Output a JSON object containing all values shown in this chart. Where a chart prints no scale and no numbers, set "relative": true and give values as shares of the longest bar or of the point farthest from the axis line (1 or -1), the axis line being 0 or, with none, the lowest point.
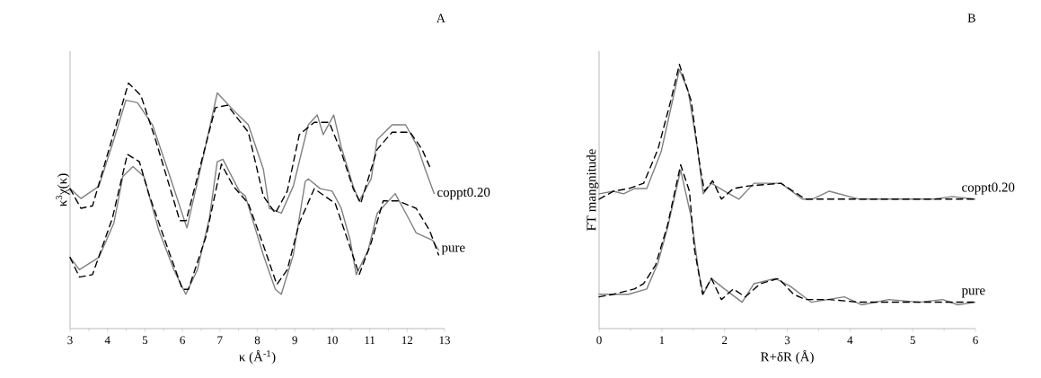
{
  "chart_data": [
    {
      "type": "line",
      "title": "A",
      "xlabel": "κ (Å$^{-1}$)",
      "ylabel": "κ$^{3}$χ(κ)",
      "relative": true,
      "xlim": [
        3,
        13
      ],
      "xticks": [
        3,
        4,
        5,
        6,
        7,
        8,
        9,
        10,
        11,
        12,
        13
      ],
      "series": [
        {
          "name": "coppt0.20",
          "color": "#808080",
          "line_style": "solid",
          "x": [
            3.0,
            3.29,
            3.77,
            4.17,
            4.49,
            4.8,
            5.2,
            5.6,
            6.12,
            6.57,
            6.93,
            7.36,
            7.76,
            8.16,
            8.32,
            8.64,
            8.96,
            9.36,
            9.6,
            9.76,
            10.04,
            10.24,
            10.56,
            10.72,
            11.04,
            11.2,
            11.6,
            11.96,
            12.28,
            12.48,
            12.72
          ],
          "values": [
            0.57,
            0.53,
            0.58,
            0.77,
            0.93,
            0.92,
            0.83,
            0.65,
            0.41,
            0.71,
            0.96,
            0.89,
            0.83,
            0.65,
            0.49,
            0.47,
            0.58,
            0.83,
            0.87,
            0.79,
            0.87,
            0.74,
            0.58,
            0.52,
            0.61,
            0.77,
            0.83,
            0.83,
            0.74,
            0.65,
            0.55
          ]
        },
        {
          "color": "#000000",
          "line_style": "dashed",
          "x": [
            3.0,
            3.29,
            3.6,
            4.0,
            4.56,
            4.89,
            5.28,
            5.93,
            6.1,
            6.88,
            7.2,
            7.76,
            8.16,
            8.48,
            8.8,
            9.12,
            9.52,
            9.92,
            10.24,
            10.56,
            10.76,
            11.2,
            11.6,
            12.08,
            12.4,
            12.6
          ],
          "values": [
            0.57,
            0.49,
            0.5,
            0.71,
            1.0,
            0.95,
            0.77,
            0.44,
            0.44,
            0.9,
            0.91,
            0.8,
            0.54,
            0.47,
            0.56,
            0.79,
            0.84,
            0.84,
            0.72,
            0.57,
            0.51,
            0.73,
            0.8,
            0.8,
            0.73,
            0.66
          ]
        },
        {
          "name": "pure",
          "color": "#808080",
          "line_style": "solid",
          "x": [
            3.0,
            3.25,
            3.77,
            4.17,
            4.41,
            4.68,
            4.97,
            5.37,
            5.77,
            6.09,
            6.4,
            6.72,
            6.93,
            7.08,
            7.52,
            7.68,
            8.16,
            8.48,
            8.64,
            8.96,
            9.28,
            9.36,
            9.68,
            10.0,
            10.24,
            10.48,
            10.64,
            10.96,
            11.2,
            11.68,
            12.0,
            12.24,
            12.68,
            12.84
          ],
          "values": [
            0.29,
            0.24,
            0.29,
            0.43,
            0.62,
            0.66,
            0.62,
            0.4,
            0.24,
            0.14,
            0.24,
            0.45,
            0.68,
            0.69,
            0.56,
            0.54,
            0.3,
            0.16,
            0.14,
            0.3,
            0.6,
            0.61,
            0.57,
            0.56,
            0.49,
            0.36,
            0.22,
            0.32,
            0.47,
            0.55,
            0.46,
            0.39,
            0.36,
            0.32
          ]
        },
        {
          "color": "#000000",
          "line_style": "dashed",
          "x": [
            3.0,
            3.25,
            3.6,
            4.13,
            4.53,
            4.85,
            5.1,
            5.6,
            6.0,
            6.16,
            6.64,
            7.04,
            7.36,
            7.76,
            8.16,
            8.52,
            8.8,
            9.12,
            9.52,
            10.08,
            10.48,
            10.72,
            11.04,
            11.36,
            11.76,
            12.24,
            12.6,
            12.84
          ],
          "values": [
            0.29,
            0.21,
            0.22,
            0.45,
            0.71,
            0.68,
            0.55,
            0.33,
            0.16,
            0.16,
            0.38,
            0.67,
            0.58,
            0.51,
            0.34,
            0.18,
            0.24,
            0.43,
            0.57,
            0.51,
            0.33,
            0.22,
            0.35,
            0.52,
            0.52,
            0.49,
            0.4,
            0.3
          ]
        }
      ]
    },
    {
      "type": "line",
      "title": "B",
      "xlabel": "R+δR (Å)",
      "ylabel": "FT mangnitude",
      "relative": true,
      "xlim": [
        0,
        6
      ],
      "xticks": [
        0,
        1,
        2,
        3,
        4,
        5,
        6
      ],
      "series": [
        {
          "name": "coppt0.20",
          "color": "#808080",
          "line_style": "solid",
          "x": [
            0,
            0.23,
            0.39,
            0.56,
            0.76,
            0.99,
            1.14,
            1.28,
            1.42,
            1.57,
            1.66,
            1.79,
            2.0,
            2.23,
            2.47,
            2.9,
            3.24,
            3.4,
            3.67,
            4.15,
            4.86,
            5.34,
            5.63,
            5.99
          ],
          "values": [
            0.51,
            0.52,
            0.51,
            0.53,
            0.53,
            0.67,
            0.83,
            0.98,
            0.9,
            0.68,
            0.51,
            0.55,
            0.52,
            0.49,
            0.55,
            0.55,
            0.49,
            0.49,
            0.52,
            0.49,
            0.49,
            0.49,
            0.5,
            0.49
          ]
        },
        {
          "color": "#000000",
          "line_style": "dashed",
          "x": [
            0,
            0.23,
            0.47,
            0.71,
            0.94,
            1.14,
            1.28,
            1.47,
            1.61,
            1.68,
            1.81,
            1.95,
            2.14,
            2.38,
            2.9,
            3.29,
            3.91,
            4.86,
            5.99
          ],
          "values": [
            0.49,
            0.52,
            0.53,
            0.55,
            0.68,
            0.86,
            1.0,
            0.86,
            0.61,
            0.52,
            0.56,
            0.49,
            0.53,
            0.54,
            0.55,
            0.49,
            0.49,
            0.49,
            0.49
          ]
        },
        {
          "name": "pure",
          "color": "#808080",
          "line_style": "solid",
          "x": [
            0,
            0.23,
            0.47,
            0.76,
            0.94,
            1.09,
            1.3,
            1.47,
            1.59,
            1.66,
            1.79,
            2.0,
            2.28,
            2.47,
            2.81,
            3.05,
            3.38,
            3.91,
            4.19,
            4.62,
            5.1,
            5.48,
            5.72,
            5.99
          ],
          "values": [
            0.13,
            0.13,
            0.13,
            0.15,
            0.25,
            0.38,
            0.6,
            0.42,
            0.21,
            0.13,
            0.19,
            0.15,
            0.1,
            0.17,
            0.19,
            0.16,
            0.1,
            0.12,
            0.09,
            0.11,
            0.1,
            0.11,
            0.09,
            0.1
          ]
        },
        {
          "color": "#000000",
          "line_style": "dashed",
          "x": [
            0,
            0.23,
            0.56,
            0.71,
            0.9,
            1.09,
            1.3,
            1.44,
            1.52,
            1.65,
            1.79,
            1.95,
            2.14,
            2.33,
            2.57,
            2.86,
            3.1,
            3.29,
            3.67,
            4.15,
            5.1,
            5.99
          ],
          "values": [
            0.12,
            0.13,
            0.15,
            0.17,
            0.24,
            0.39,
            0.62,
            0.52,
            0.3,
            0.13,
            0.19,
            0.11,
            0.15,
            0.12,
            0.17,
            0.19,
            0.13,
            0.11,
            0.11,
            0.1,
            0.1,
            0.1
          ]
        }
      ]
    }
  ]
}
